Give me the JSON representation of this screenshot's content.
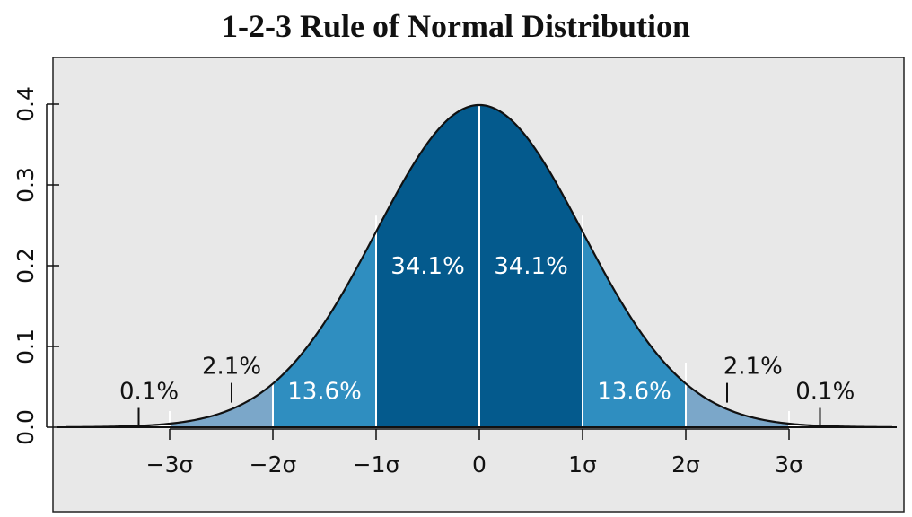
{
  "chart_data": {
    "type": "area",
    "title": "1-2-3 Rule of Normal Distribution",
    "xlabel": "",
    "ylabel": "",
    "xlim": [
      -4,
      4
    ],
    "ylim": [
      0,
      0.4
    ],
    "x_ticks": [
      {
        "value": -3,
        "label": "−3σ"
      },
      {
        "value": -2,
        "label": "−2σ"
      },
      {
        "value": -1,
        "label": "−1σ"
      },
      {
        "value": 0,
        "label": "0"
      },
      {
        "value": 1,
        "label": "1σ"
      },
      {
        "value": 2,
        "label": "2σ"
      },
      {
        "value": 3,
        "label": "3σ"
      }
    ],
    "y_ticks": [
      {
        "value": 0.0,
        "label": "0.0"
      },
      {
        "value": 0.1,
        "label": "0.1"
      },
      {
        "value": 0.2,
        "label": "0.2"
      },
      {
        "value": 0.3,
        "label": "0.3"
      },
      {
        "value": 0.4,
        "label": "0.4"
      }
    ],
    "curve": {
      "mean": 0,
      "sd": 1
    },
    "regions": [
      {
        "from": -4,
        "to": -3,
        "color": "#ffffff"
      },
      {
        "from": -3,
        "to": -2,
        "color": "#7ba7c9"
      },
      {
        "from": -2,
        "to": -1,
        "color": "#2f8ec0"
      },
      {
        "from": -1,
        "to": 0,
        "color": "#045a8d"
      },
      {
        "from": 0,
        "to": 1,
        "color": "#045a8d"
      },
      {
        "from": 1,
        "to": 2,
        "color": "#2f8ec0"
      },
      {
        "from": 2,
        "to": 3,
        "color": "#7ba7c9"
      },
      {
        "from": 3,
        "to": 4,
        "color": "#ffffff"
      }
    ],
    "annotations": [
      {
        "text": "34.1%",
        "x": -0.5,
        "y": 0.19,
        "color": "#ffffff",
        "anchor": "middle"
      },
      {
        "text": "34.1%",
        "x": 0.5,
        "y": 0.19,
        "color": "#ffffff",
        "anchor": "middle"
      },
      {
        "text": "13.6%",
        "x": -1.5,
        "y": 0.035,
        "color": "#ffffff",
        "anchor": "middle"
      },
      {
        "text": "13.6%",
        "x": 1.5,
        "y": 0.035,
        "color": "#ffffff",
        "anchor": "middle"
      },
      {
        "text": "2.1%",
        "x": -2.4,
        "y": 0.066,
        "color": "#111111",
        "anchor": "middle",
        "pointer_x": -2.4
      },
      {
        "text": "2.1%",
        "x": 2.65,
        "y": 0.066,
        "color": "#111111",
        "anchor": "middle",
        "pointer_x": 2.4
      },
      {
        "text": "0.1%",
        "x": -3.2,
        "y": 0.035,
        "color": "#111111",
        "anchor": "middle",
        "pointer_x": -3.3
      },
      {
        "text": "0.1%",
        "x": 3.35,
        "y": 0.035,
        "color": "#111111",
        "anchor": "middle",
        "pointer_x": 3.3
      }
    ],
    "background": "#e8e8e8",
    "grid": false,
    "legend": "none"
  }
}
